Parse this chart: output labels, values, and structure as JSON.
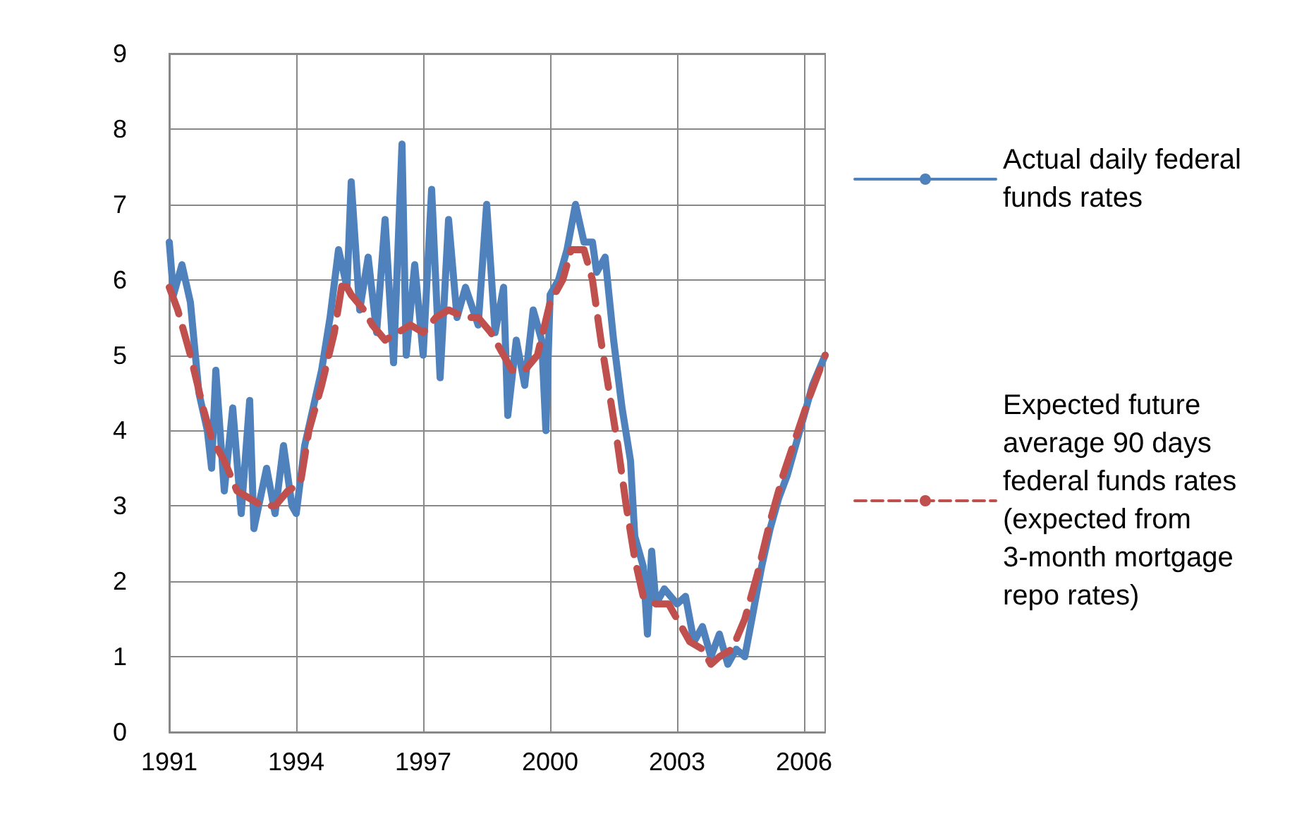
{
  "chart_data": {
    "type": "line",
    "xlim": [
      1991,
      2006.5
    ],
    "xticks": [
      1991,
      1994,
      1997,
      2000,
      2003,
      2006
    ],
    "ylim": [
      0,
      9
    ],
    "yticks": [
      0,
      1,
      2,
      3,
      4,
      5,
      6,
      7,
      8,
      9
    ],
    "grid": true,
    "legend": "right",
    "marker": "none",
    "series": [
      {
        "name": "Actual daily federal funds rates",
        "color": "#4f81bd",
        "line_style": "solid",
        "x": [
          1991.0,
          1991.1,
          1991.3,
          1991.5,
          1991.7,
          1991.9,
          1992.0,
          1992.1,
          1992.3,
          1992.5,
          1992.7,
          1992.9,
          1993.0,
          1993.3,
          1993.5,
          1993.7,
          1993.9,
          1994.0,
          1994.2,
          1994.4,
          1994.6,
          1994.8,
          1995.0,
          1995.2,
          1995.3,
          1995.5,
          1995.7,
          1995.9,
          1996.1,
          1996.3,
          1996.5,
          1996.6,
          1996.8,
          1997.0,
          1997.2,
          1997.4,
          1997.6,
          1997.8,
          1998.0,
          1998.3,
          1998.5,
          1998.7,
          1998.9,
          1999.0,
          1999.2,
          1999.4,
          1999.6,
          1999.8,
          1999.9,
          2000.0,
          2000.2,
          2000.4,
          2000.6,
          2000.8,
          2001.0,
          2001.1,
          2001.3,
          2001.5,
          2001.7,
          2001.9,
          2002.0,
          2002.2,
          2002.3,
          2002.4,
          2002.5,
          2002.7,
          2003.0,
          2003.2,
          2003.4,
          2003.6,
          2003.8,
          2004.0,
          2004.2,
          2004.4,
          2004.6,
          2004.8,
          2005.0,
          2005.2,
          2005.4,
          2005.6,
          2005.8,
          2006.0,
          2006.2,
          2006.5
        ],
        "values": [
          6.5,
          5.8,
          6.2,
          5.7,
          4.5,
          4.0,
          3.5,
          4.8,
          3.2,
          4.3,
          2.9,
          4.4,
          2.7,
          3.5,
          2.9,
          3.8,
          3.0,
          2.9,
          3.8,
          4.3,
          4.8,
          5.5,
          6.4,
          5.9,
          7.3,
          5.6,
          6.3,
          5.3,
          6.8,
          4.9,
          7.8,
          5.0,
          6.2,
          5.0,
          7.2,
          4.7,
          6.8,
          5.5,
          5.9,
          5.4,
          7.0,
          5.3,
          5.9,
          4.2,
          5.2,
          4.6,
          5.6,
          5.2,
          4.0,
          5.8,
          6.0,
          6.4,
          7.0,
          6.5,
          6.5,
          6.1,
          6.3,
          5.2,
          4.3,
          3.6,
          2.6,
          2.2,
          1.3,
          2.4,
          1.7,
          1.9,
          1.7,
          1.8,
          1.2,
          1.4,
          1.0,
          1.3,
          0.9,
          1.1,
          1.0,
          1.6,
          2.2,
          2.7,
          3.1,
          3.4,
          3.8,
          4.2,
          4.6,
          5.0
        ]
      },
      {
        "name": "Expected future average 90 days federal funds rates (expected from 3-month mortgage repo rates)",
        "color": "#c0504d",
        "line_style": "dashed",
        "x": [
          1991.0,
          1991.2,
          1991.5,
          1991.8,
          1992.0,
          1992.3,
          1992.6,
          1992.9,
          1993.2,
          1993.5,
          1993.8,
          1994.1,
          1994.3,
          1994.6,
          1994.9,
          1995.1,
          1995.3,
          1995.6,
          1995.8,
          1996.1,
          1996.4,
          1996.7,
          1997.0,
          1997.3,
          1997.6,
          1998.0,
          1998.3,
          1998.6,
          1998.9,
          1999.1,
          1999.4,
          1999.7,
          2000.0,
          2000.3,
          2000.5,
          2000.8,
          2001.0,
          2001.2,
          2001.4,
          2001.6,
          2001.8,
          2002.0,
          2002.2,
          2002.5,
          2002.8,
          2003.0,
          2003.3,
          2003.6,
          2003.8,
          2004.0,
          2004.3,
          2004.6,
          2004.9,
          2005.2,
          2005.5,
          2005.8,
          2006.1,
          2006.5
        ],
        "values": [
          5.9,
          5.6,
          5.0,
          4.3,
          3.9,
          3.6,
          3.2,
          3.1,
          3.0,
          3.0,
          3.2,
          3.3,
          4.0,
          4.6,
          5.3,
          6.0,
          5.8,
          5.6,
          5.4,
          5.2,
          5.3,
          5.4,
          5.3,
          5.5,
          5.6,
          5.5,
          5.5,
          5.3,
          5.0,
          4.8,
          4.8,
          5.0,
          5.7,
          6.0,
          6.4,
          6.4,
          6.0,
          5.2,
          4.5,
          3.8,
          3.0,
          2.3,
          1.8,
          1.7,
          1.7,
          1.5,
          1.2,
          1.1,
          0.9,
          1.0,
          1.1,
          1.5,
          2.1,
          2.8,
          3.4,
          3.9,
          4.4,
          5.0
        ]
      }
    ]
  }
}
